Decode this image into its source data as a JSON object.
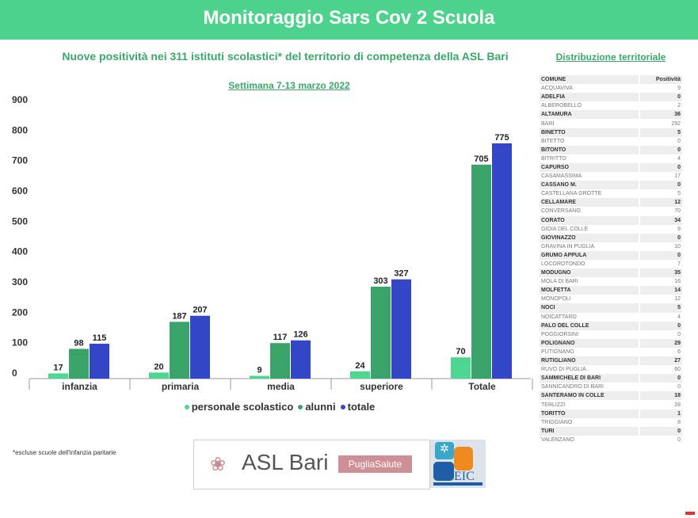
{
  "header": {
    "title": "Monitoraggio Sars Cov 2 Scuola"
  },
  "subtitle": "Nuove positività nei 311 istituti scolastici* del territorio di competenza della ASL Bari",
  "week": "Settimana 7-13 marzo 2022",
  "footnote": "*escluse scuole dell'infanzia paritarie",
  "logo": {
    "asl": "ASL Bari",
    "puglia": "PugliaSalute",
    "eic": "EIC"
  },
  "distribution": {
    "title": "Distribuzione territoriale",
    "headers": [
      "COMUNE",
      "Positività"
    ],
    "rows": [
      [
        "ACQUAVIVA",
        "9"
      ],
      [
        "ADELFIA",
        "0"
      ],
      [
        "ALBEROBELLO",
        "2"
      ],
      [
        "ALTAMURA",
        "36"
      ],
      [
        "BARI",
        "292"
      ],
      [
        "BINETTO",
        "5"
      ],
      [
        "BITETTO",
        "0"
      ],
      [
        "BITONTO",
        "0"
      ],
      [
        "BITRITTO",
        "4"
      ],
      [
        "CAPURSO",
        "0"
      ],
      [
        "CASAMASSIMA",
        "17"
      ],
      [
        "CASSANO M.",
        "0"
      ],
      [
        "CASTELLANA  GROTTE",
        "5"
      ],
      [
        "CELLAMARE",
        "12"
      ],
      [
        "CONVERSANO",
        "70"
      ],
      [
        "CORATO",
        "34"
      ],
      [
        "GIOIA DEL COLLE",
        "9"
      ],
      [
        "GIOVINAZZO",
        "0"
      ],
      [
        "GRAVINA IN PUGLIA",
        "10"
      ],
      [
        "GRUMO APPULA",
        "0"
      ],
      [
        "LOCOROTONDO",
        "7"
      ],
      [
        "MODUGNO",
        "35"
      ],
      [
        "MOLA DI BARI",
        "16"
      ],
      [
        "MOLFETTA",
        "14"
      ],
      [
        "MONOPOLI",
        "12"
      ],
      [
        "NOCI",
        "5"
      ],
      [
        "NOICATTARO",
        "4"
      ],
      [
        "PALO DEL COLLE",
        "0"
      ],
      [
        "POGGIORSINI",
        "0"
      ],
      [
        "POLIGNANO",
        "29"
      ],
      [
        "PUTIGNANO",
        "6"
      ],
      [
        "RUTIGLIANO",
        "27"
      ],
      [
        "RUVO DI PUGLIA",
        "60"
      ],
      [
        "SAMMICHELE DI BARI",
        "0"
      ],
      [
        "SANNICANDRO DI BARI",
        "0"
      ],
      [
        "SANTERAMO IN COLLE",
        "18"
      ],
      [
        "TERLIZZI",
        "28"
      ],
      [
        "TORITTO",
        "1"
      ],
      [
        "TRIGGIANO",
        "8"
      ],
      [
        "TURI",
        "0"
      ],
      [
        "VALENZANO",
        "0"
      ]
    ]
  },
  "chart_data": {
    "type": "bar",
    "title": "Nuove positività nei 311 istituti scolastici* del territorio di competenza della ASL Bari",
    "categories": [
      "infanzia",
      "primaria",
      "media",
      "superiore",
      "Totale"
    ],
    "series": [
      {
        "name": "personale scolastico",
        "color": "#4cd68f",
        "values": [
          17,
          20,
          9,
          24,
          70
        ]
      },
      {
        "name": "alunni",
        "color": "#3aa36a",
        "values": [
          98,
          187,
          117,
          303,
          705
        ]
      },
      {
        "name": "totale",
        "color": "#3347c6",
        "values": [
          115,
          207,
          126,
          327,
          775
        ]
      }
    ],
    "yticks": [
      0,
      100,
      200,
      300,
      400,
      500,
      600,
      700,
      800,
      900
    ],
    "ylim": [
      0,
      900
    ],
    "legend": "bottom"
  }
}
